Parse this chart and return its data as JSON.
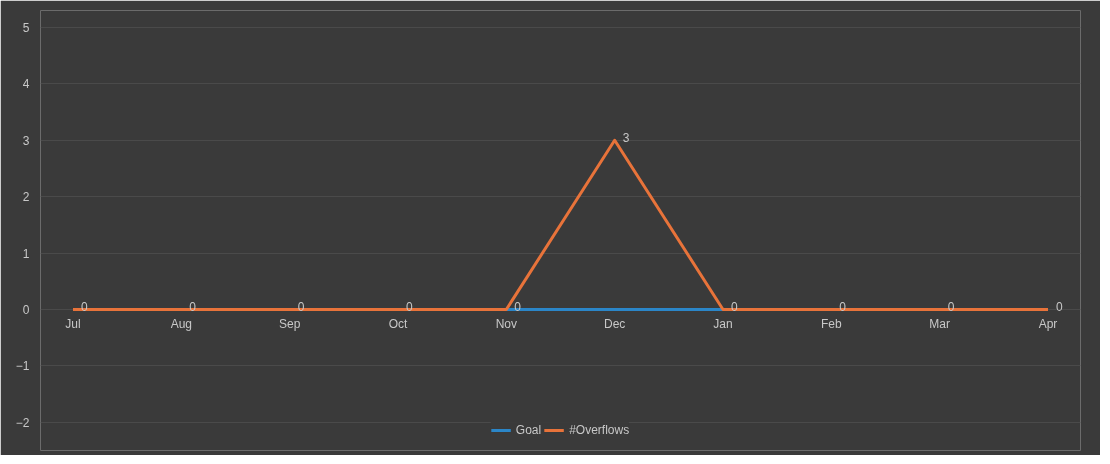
{
  "chart_data": {
    "type": "line",
    "categories": [
      "Jul",
      "Aug",
      "Sep",
      "Oct",
      "Nov",
      "Dec",
      "Jan",
      "Feb",
      "Mar",
      "Apr"
    ],
    "ylim": [
      -2.5,
      5.3
    ],
    "yticks": [
      -2,
      -1,
      0,
      1,
      2,
      3,
      4,
      5
    ],
    "grid": "y",
    "legend": "bottom",
    "marker": "none",
    "line_style": "solid",
    "series": [
      {
        "name": "Goal",
        "color": "#2b86c8",
        "values": [
          null,
          null,
          null,
          null,
          0,
          0,
          0,
          null,
          null,
          null
        ]
      },
      {
        "name": "#Overflows",
        "color": "#e8733a",
        "values": [
          0,
          0,
          0,
          0,
          0,
          3,
          0,
          0,
          0,
          0
        ],
        "value_labels": [
          "0",
          "0",
          "0",
          "0",
          "0",
          "3",
          "0",
          "0",
          "0",
          "0"
        ]
      }
    ]
  }
}
